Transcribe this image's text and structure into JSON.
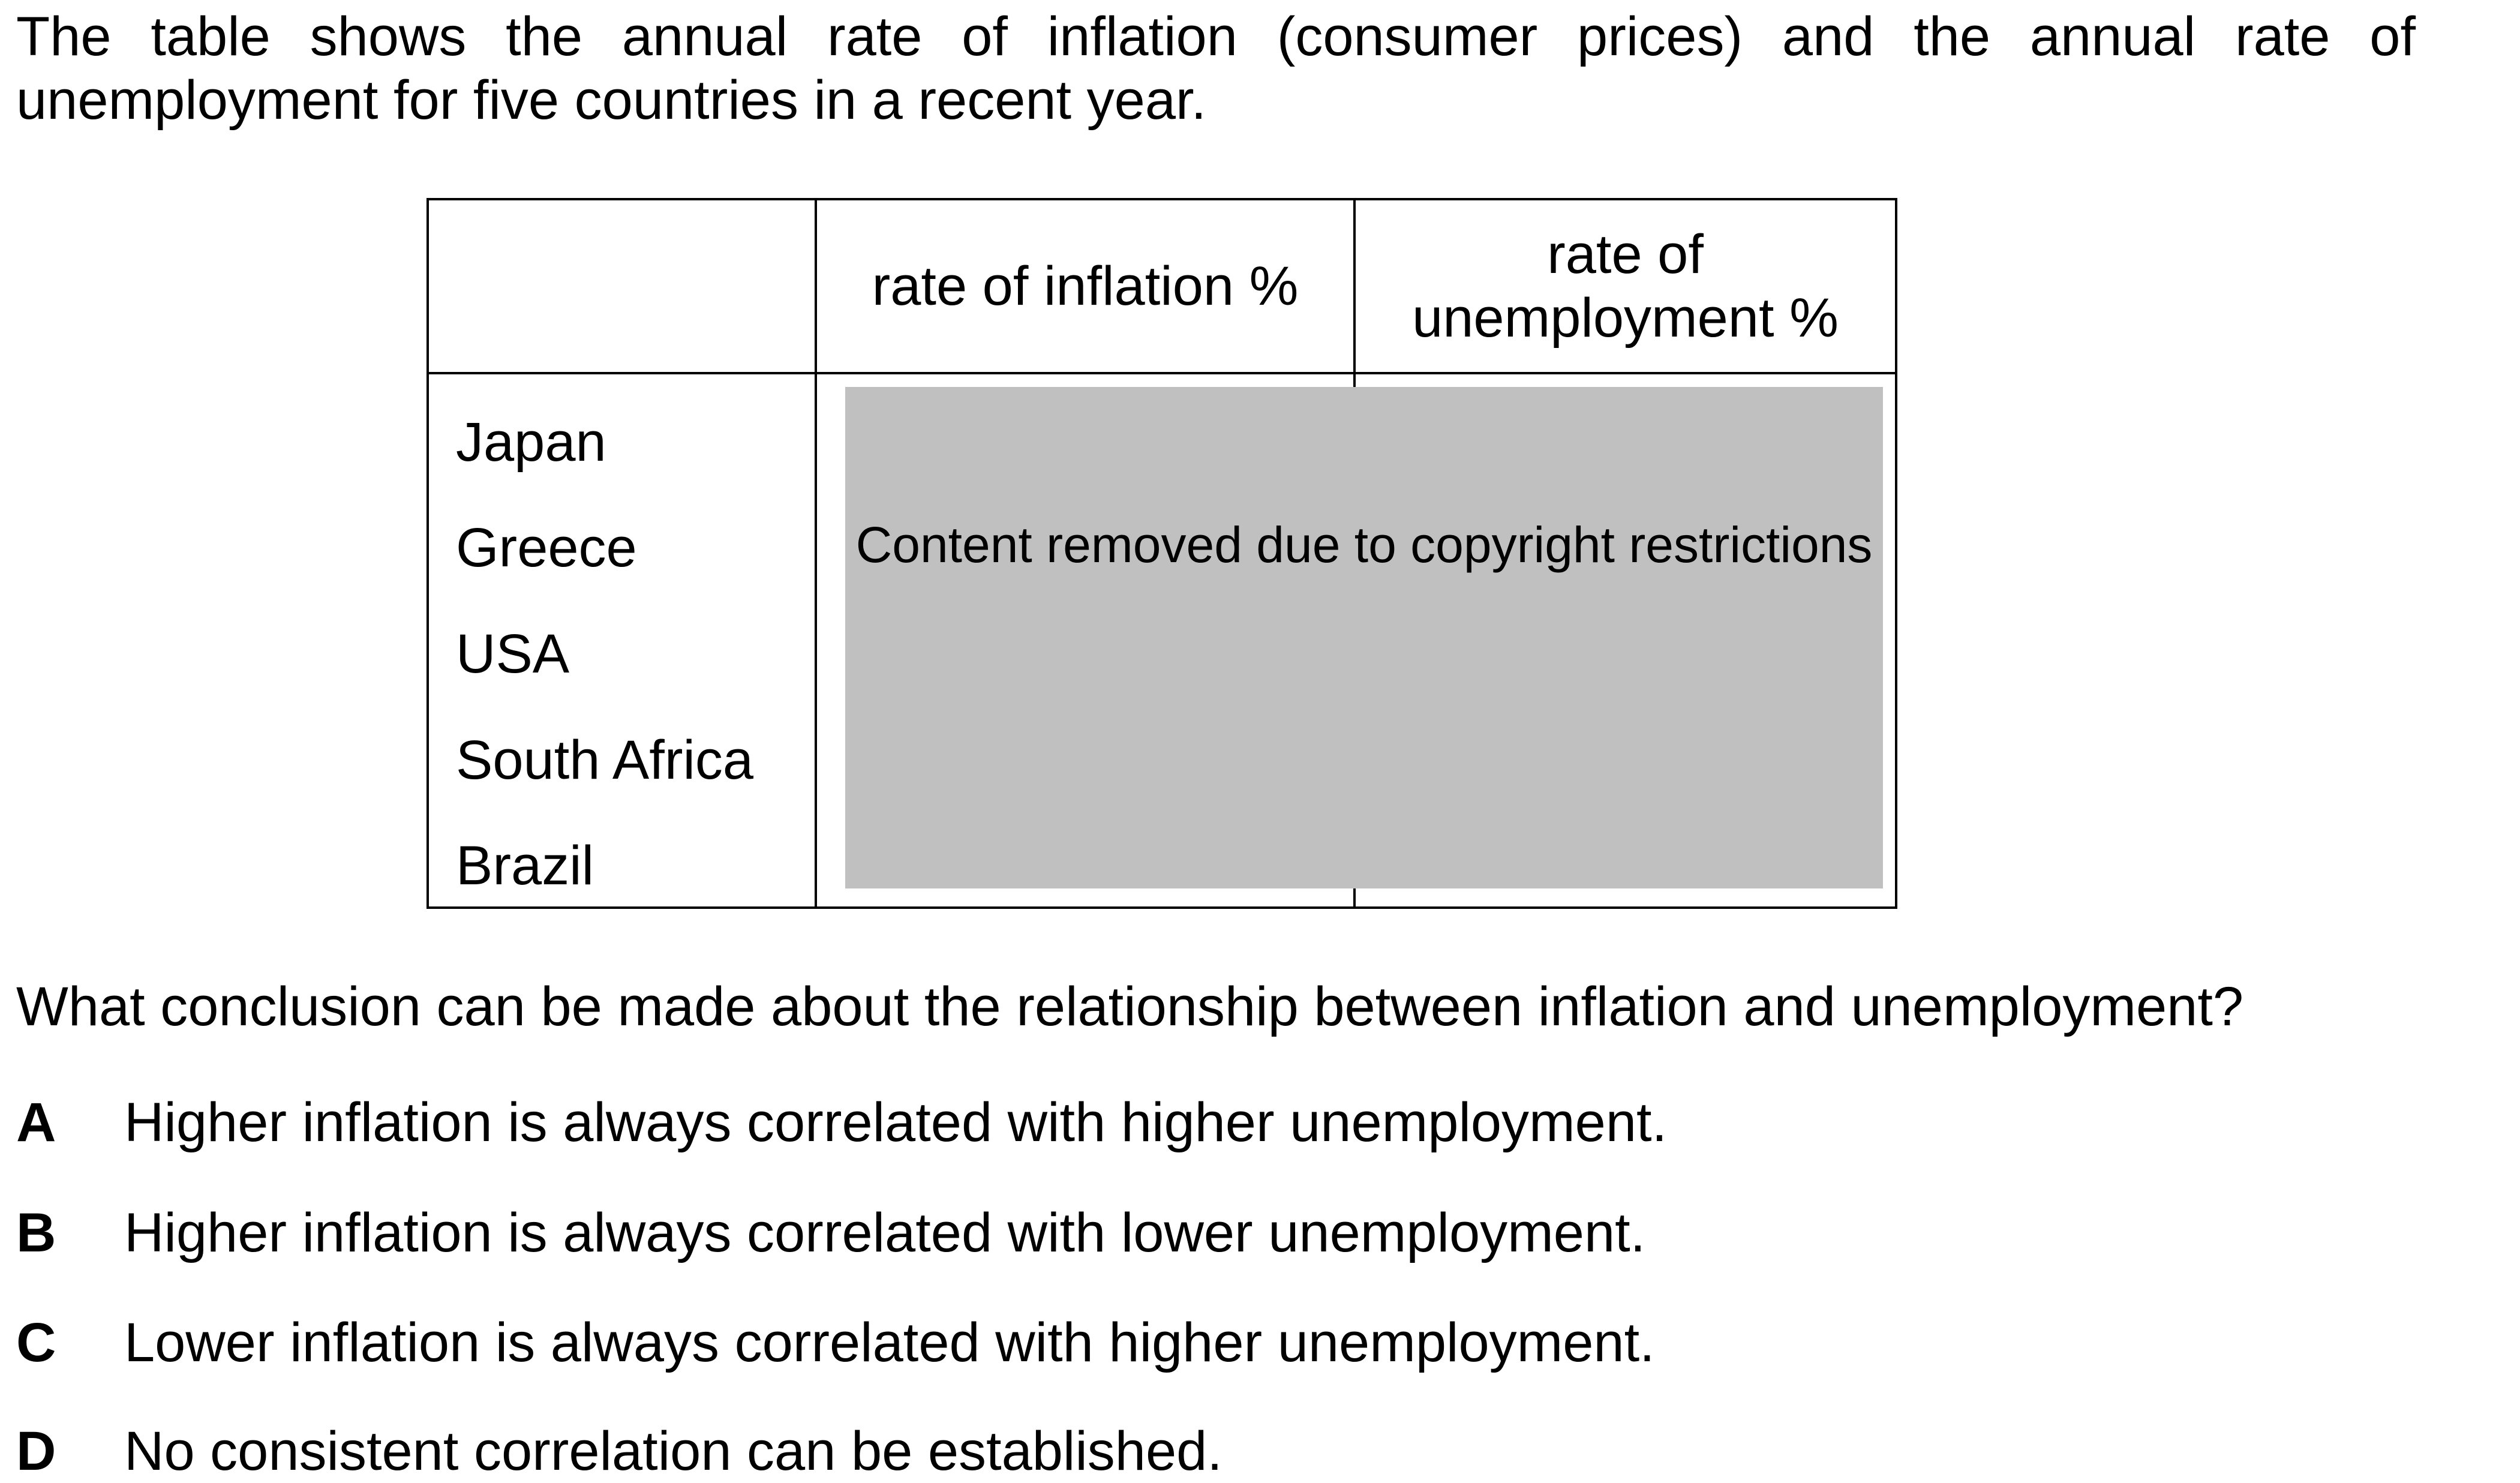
{
  "intro": "The table shows the annual rate of inflation (consumer prices) and the annual rate of unemployment for five countries in a recent year.",
  "table": {
    "headers": [
      "",
      "rate of inflation %",
      "rate of unemployment %"
    ],
    "header_inflation": "rate of inflation %",
    "header_unemployment_line1": "rate of",
    "header_unemployment_line2": "unemployment %",
    "countries": [
      "Japan",
      "Greece",
      "USA",
      "South Africa",
      "Brazil"
    ],
    "redacted_notice": "Content removed due to copyright restrictions",
    "redacted_fill": "#c0c0c0"
  },
  "question": "What conclusion can be made about the relationship between inflation and unemployment?",
  "options": [
    {
      "letter": "A",
      "text": "Higher inflation is always correlated with higher unemployment."
    },
    {
      "letter": "B",
      "text": "Higher inflation is always correlated with lower unemployment."
    },
    {
      "letter": "C",
      "text": "Lower inflation is always correlated with higher unemployment."
    },
    {
      "letter": "D",
      "text": "No consistent correlation can be established."
    }
  ]
}
